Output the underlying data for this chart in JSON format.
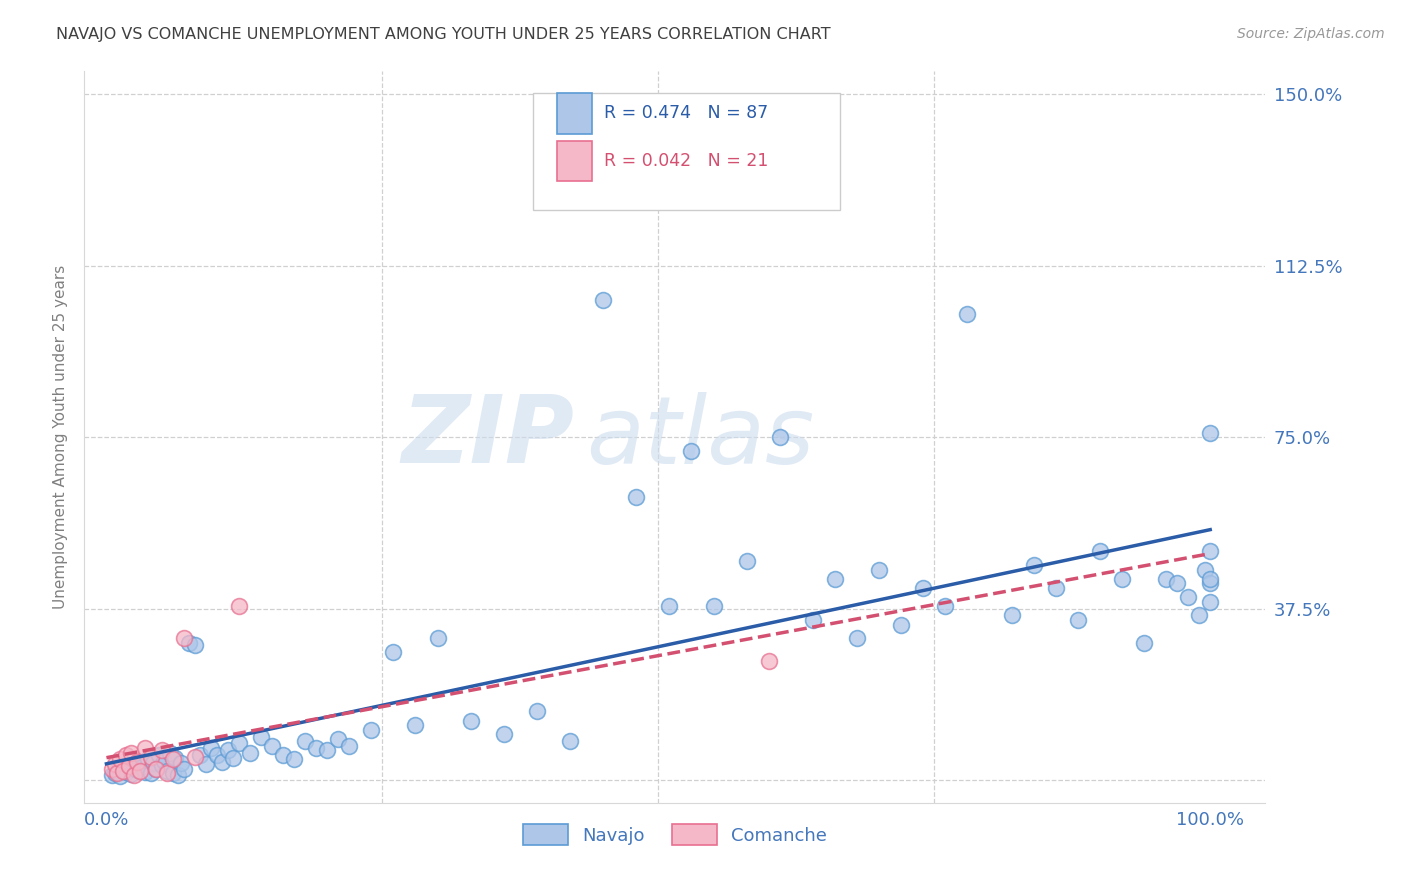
{
  "title": "NAVAJO VS COMANCHE UNEMPLOYMENT AMONG YOUTH UNDER 25 YEARS CORRELATION CHART",
  "source": "Source: ZipAtlas.com",
  "ylabel": "Unemployment Among Youth under 25 years",
  "xlim": [
    -0.02,
    1.05
  ],
  "ylim": [
    -0.05,
    1.55
  ],
  "xticks": [
    0.0,
    0.25,
    0.5,
    0.75,
    1.0
  ],
  "xtick_labels": [
    "0.0%",
    "",
    "",
    "",
    "100.0%"
  ],
  "yticks": [
    0.0,
    0.375,
    0.75,
    1.125,
    1.5
  ],
  "ytick_labels": [
    "",
    "37.5%",
    "75.0%",
    "112.5%",
    "150.0%"
  ],
  "navajo_R": 0.474,
  "navajo_N": 87,
  "comanche_R": 0.042,
  "comanche_N": 21,
  "navajo_color": "#aec6e8",
  "navajo_edge_color": "#5b9bd5",
  "navajo_line_color": "#2b5ca8",
  "comanche_color": "#f4b8c8",
  "comanche_edge_color": "#e87090",
  "comanche_line_color": "#d45070",
  "background_color": "#ffffff",
  "grid_color": "#d0d0d0",
  "title_color": "#404040",
  "axis_label_color": "#808080",
  "tick_label_color": "#4477bb",
  "watermark_zip_color": "#c8d8ec",
  "watermark_atlas_color": "#c8d8ec",
  "navajo_x": [
    0.005,
    0.008,
    0.01,
    0.012,
    0.015,
    0.018,
    0.02,
    0.022,
    0.025,
    0.028,
    0.03,
    0.032,
    0.035,
    0.038,
    0.04,
    0.042,
    0.045,
    0.048,
    0.05,
    0.052,
    0.055,
    0.058,
    0.06,
    0.062,
    0.065,
    0.068,
    0.07,
    0.075,
    0.08,
    0.085,
    0.09,
    0.095,
    0.1,
    0.105,
    0.11,
    0.115,
    0.12,
    0.13,
    0.14,
    0.15,
    0.16,
    0.17,
    0.18,
    0.19,
    0.2,
    0.21,
    0.22,
    0.24,
    0.26,
    0.28,
    0.3,
    0.33,
    0.36,
    0.39,
    0.42,
    0.45,
    0.48,
    0.51,
    0.53,
    0.55,
    0.58,
    0.61,
    0.64,
    0.66,
    0.68,
    0.7,
    0.72,
    0.74,
    0.76,
    0.78,
    0.82,
    0.84,
    0.86,
    0.88,
    0.9,
    0.92,
    0.94,
    0.96,
    0.97,
    0.98,
    0.99,
    0.995,
    1.0,
    1.0,
    1.0,
    1.0,
    1.0
  ],
  "navajo_y": [
    0.01,
    0.015,
    0.02,
    0.008,
    0.025,
    0.018,
    0.03,
    0.012,
    0.035,
    0.022,
    0.04,
    0.028,
    0.018,
    0.045,
    0.015,
    0.038,
    0.025,
    0.055,
    0.032,
    0.042,
    0.02,
    0.06,
    0.015,
    0.048,
    0.01,
    0.038,
    0.025,
    0.3,
    0.295,
    0.055,
    0.035,
    0.07,
    0.055,
    0.04,
    0.065,
    0.048,
    0.08,
    0.06,
    0.095,
    0.075,
    0.055,
    0.045,
    0.085,
    0.07,
    0.065,
    0.09,
    0.075,
    0.11,
    0.28,
    0.12,
    0.31,
    0.13,
    0.1,
    0.15,
    0.085,
    1.05,
    0.62,
    0.38,
    0.72,
    0.38,
    0.48,
    0.75,
    0.35,
    0.44,
    0.31,
    0.46,
    0.34,
    0.42,
    0.38,
    1.02,
    0.36,
    0.47,
    0.42,
    0.35,
    0.5,
    0.44,
    0.3,
    0.44,
    0.43,
    0.4,
    0.36,
    0.46,
    0.39,
    0.43,
    0.5,
    0.76,
    0.44
  ],
  "comanche_x": [
    0.005,
    0.008,
    0.01,
    0.012,
    0.015,
    0.018,
    0.02,
    0.022,
    0.025,
    0.028,
    0.03,
    0.035,
    0.04,
    0.045,
    0.05,
    0.055,
    0.06,
    0.07,
    0.08,
    0.12,
    0.6
  ],
  "comanche_y": [
    0.025,
    0.035,
    0.015,
    0.045,
    0.02,
    0.055,
    0.03,
    0.06,
    0.01,
    0.04,
    0.02,
    0.07,
    0.05,
    0.025,
    0.065,
    0.015,
    0.045,
    0.31,
    0.05,
    0.38,
    0.26
  ]
}
